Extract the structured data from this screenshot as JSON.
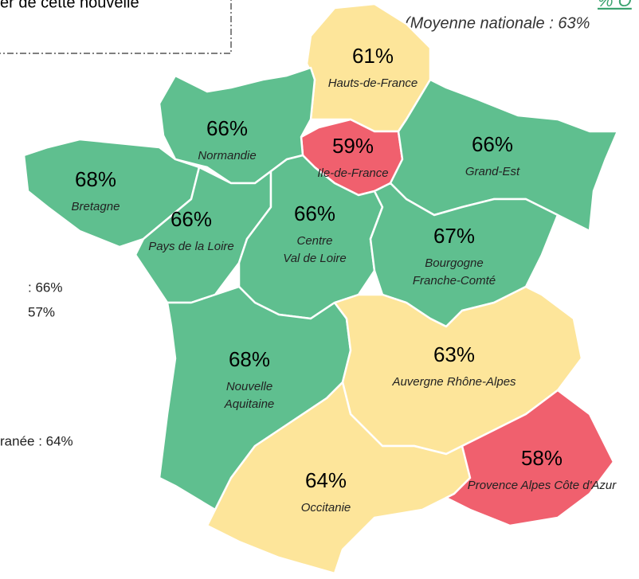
{
  "header": {
    "note_fragment": "er de cette nouvelle",
    "title_fragment": "% O",
    "subtitle": "(Moyenne nationale : 63%"
  },
  "side_fragments": [
    ": 66%",
    "57%",
    "ranée : 64%"
  ],
  "map": {
    "regions": [
      {
        "name": [
          "Hauts-de-France"
        ],
        "value": 61,
        "value_label": "61%",
        "color": "#fde59a"
      },
      {
        "name": [
          "Ile-de-France"
        ],
        "value": 59,
        "value_label": "59%",
        "color": "#f0606e"
      },
      {
        "name": [
          "Grand-Est"
        ],
        "value": 66,
        "value_label": "66%",
        "color": "#5fbf8f"
      },
      {
        "name": [
          "Normandie"
        ],
        "value": 66,
        "value_label": "66%",
        "color": "#5fbf8f"
      },
      {
        "name": [
          "Bretagne"
        ],
        "value": 68,
        "value_label": "68%",
        "color": "#5fbf8f"
      },
      {
        "name": [
          "Pays de la Loire"
        ],
        "value": 66,
        "value_label": "66%",
        "color": "#5fbf8f"
      },
      {
        "name": [
          "Centre",
          "Val de Loire"
        ],
        "value": 66,
        "value_label": "66%",
        "color": "#5fbf8f"
      },
      {
        "name": [
          "Bourgogne",
          "Franche-Comté"
        ],
        "value": 67,
        "value_label": "67%",
        "color": "#5fbf8f"
      },
      {
        "name": [
          "Nouvelle",
          "Aquitaine"
        ],
        "value": 68,
        "value_label": "68%",
        "color": "#5fbf8f"
      },
      {
        "name": [
          "Auvergne Rhône-Alpes"
        ],
        "value": 63,
        "value_label": "63%",
        "color": "#fde59a"
      },
      {
        "name": [
          "Occitanie"
        ],
        "value": 64,
        "value_label": "64%",
        "color": "#fde59a"
      },
      {
        "name": [
          "Provence Alpes Côte d'Azur"
        ],
        "value": 58,
        "value_label": "58%",
        "color": "#f0606e"
      }
    ]
  }
}
